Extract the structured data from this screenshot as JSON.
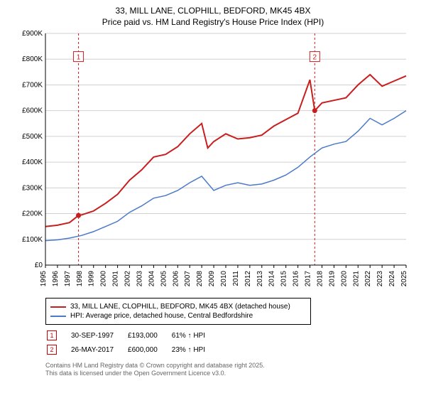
{
  "title_line1": "33, MILL LANE, CLOPHILL, BEDFORD, MK45 4BX",
  "title_line2": "Price paid vs. HM Land Registry's House Price Index (HPI)",
  "chart": {
    "type": "line",
    "background_color": "#ffffff",
    "grid_color": "#d0d0d0",
    "axis_color": "#000000",
    "axis_fontsize": 10,
    "x": {
      "start": 1995,
      "end": 2025,
      "tick_step": 1,
      "labels": [
        "1995",
        "1996",
        "1997",
        "1998",
        "1999",
        "2000",
        "2001",
        "2002",
        "2003",
        "2004",
        "2005",
        "2006",
        "2007",
        "2008",
        "2009",
        "2010",
        "2011",
        "2012",
        "2013",
        "2014",
        "2015",
        "2016",
        "2017",
        "2018",
        "2019",
        "2020",
        "2021",
        "2022",
        "2023",
        "2024",
        "2025"
      ]
    },
    "y": {
      "min": 0,
      "max": 900,
      "tick_step": 100,
      "labels": [
        "£0",
        "£100K",
        "£200K",
        "£300K",
        "£400K",
        "£500K",
        "£600K",
        "£700K",
        "£800K",
        "£900K"
      ]
    },
    "series": [
      {
        "name": "33, MILL LANE, CLOPHILL, BEDFORD, MK45 4BX (detached house)",
        "color": "#c81e1e",
        "line_width": 2,
        "years": [
          1995,
          1996,
          1997,
          1997.75,
          1998,
          1999,
          2000,
          2001,
          2002,
          2003,
          2004,
          2005,
          2006,
          2007,
          2008,
          2008.5,
          2009,
          2010,
          2011,
          2012,
          2013,
          2014,
          2015,
          2016,
          2017,
          2017.4,
          2018,
          2019,
          2020,
          2021,
          2022,
          2023,
          2024,
          2025
        ],
        "values": [
          150,
          155,
          165,
          193,
          195,
          210,
          240,
          275,
          330,
          370,
          420,
          430,
          460,
          510,
          550,
          455,
          480,
          510,
          490,
          495,
          505,
          540,
          565,
          590,
          720,
          600,
          630,
          640,
          650,
          700,
          740,
          695,
          715,
          735
        ]
      },
      {
        "name": "HPI: Average price, detached house, Central Bedfordshire",
        "color": "#4a7ac8",
        "line_width": 1.5,
        "years": [
          1995,
          1996,
          1997,
          1998,
          1999,
          2000,
          2001,
          2002,
          2003,
          2004,
          2005,
          2006,
          2007,
          2008,
          2009,
          2010,
          2011,
          2012,
          2013,
          2014,
          2015,
          2016,
          2017,
          2018,
          2019,
          2020,
          2021,
          2022,
          2023,
          2024,
          2025
        ],
        "values": [
          95,
          98,
          105,
          115,
          130,
          150,
          170,
          205,
          230,
          260,
          270,
          290,
          320,
          345,
          290,
          310,
          320,
          310,
          315,
          330,
          350,
          380,
          420,
          455,
          470,
          480,
          520,
          570,
          545,
          570,
          600
        ]
      }
    ],
    "markers": [
      {
        "n": "1",
        "year": 1997.75,
        "value": 193,
        "label_y": 810,
        "color": "#c81e1e"
      },
      {
        "n": "2",
        "year": 2017.4,
        "value": 600,
        "label_y": 810,
        "color": "#c81e1e"
      }
    ]
  },
  "legend": {
    "items": [
      {
        "color": "#c81e1e",
        "label": "33, MILL LANE, CLOPHILL, BEDFORD, MK45 4BX (detached house)"
      },
      {
        "color": "#4a7ac8",
        "label": "HPI: Average price, detached house, Central Bedfordshire"
      }
    ]
  },
  "transactions": [
    {
      "n": "1",
      "date": "30-SEP-1997",
      "price": "£193,000",
      "delta": "61% ↑ HPI"
    },
    {
      "n": "2",
      "date": "26-MAY-2017",
      "price": "£600,000",
      "delta": "23% ↑ HPI"
    }
  ],
  "footer_line1": "Contains HM Land Registry data © Crown copyright and database right 2025.",
  "footer_line2": "This data is licensed under the Open Government Licence v3.0."
}
